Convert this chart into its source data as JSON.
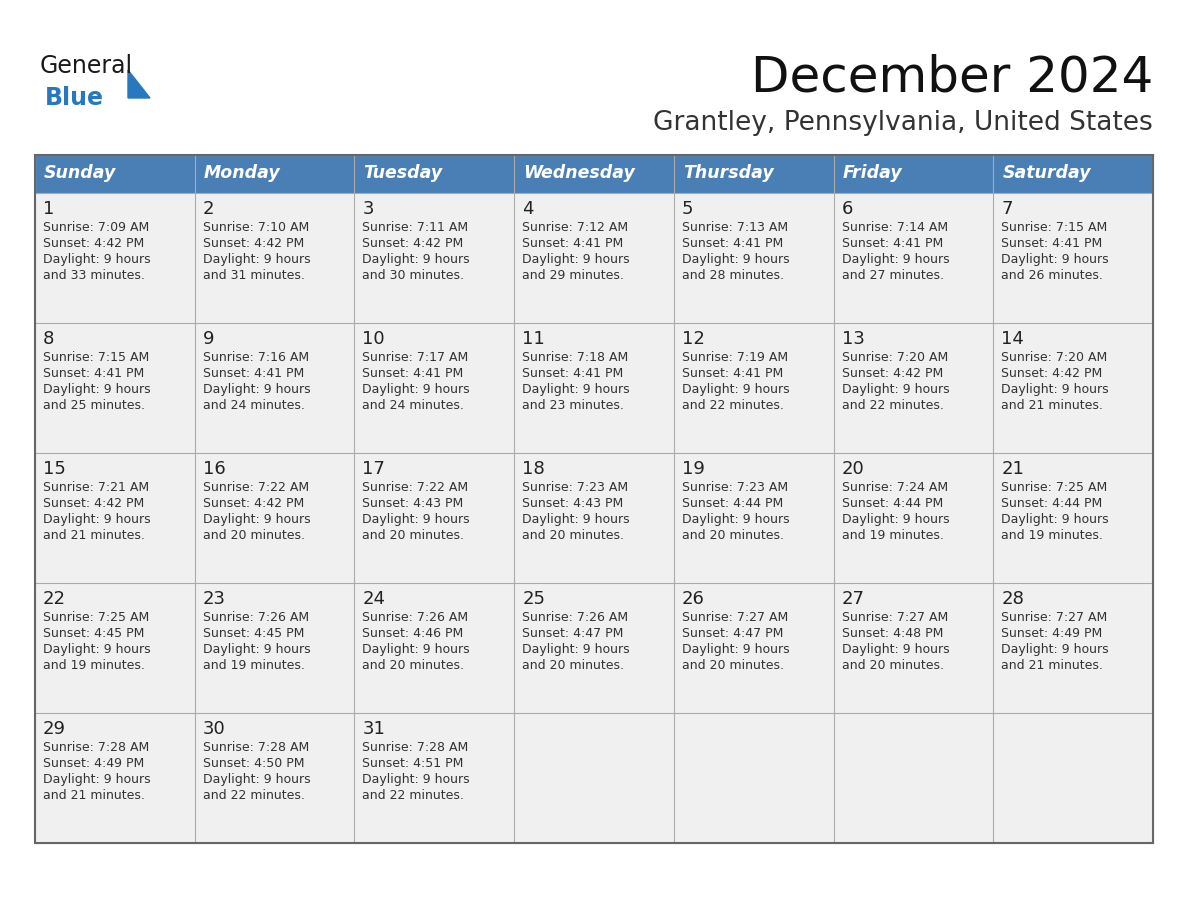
{
  "title": "December 2024",
  "subtitle": "Grantley, Pennsylvania, United States",
  "header_bg": "#4A7FB5",
  "header_text": "#FFFFFF",
  "day_headers": [
    "Sunday",
    "Monday",
    "Tuesday",
    "Wednesday",
    "Thursday",
    "Friday",
    "Saturday"
  ],
  "cell_bg_light": "#F0F0F0",
  "grid_color": "#AAAAAA",
  "days": [
    {
      "day": 1,
      "col": 0,
      "row": 0,
      "sunrise": "7:09 AM",
      "sunset": "4:42 PM",
      "daylight": "9 hours and 33 minutes."
    },
    {
      "day": 2,
      "col": 1,
      "row": 0,
      "sunrise": "7:10 AM",
      "sunset": "4:42 PM",
      "daylight": "9 hours and 31 minutes."
    },
    {
      "day": 3,
      "col": 2,
      "row": 0,
      "sunrise": "7:11 AM",
      "sunset": "4:42 PM",
      "daylight": "9 hours and 30 minutes."
    },
    {
      "day": 4,
      "col": 3,
      "row": 0,
      "sunrise": "7:12 AM",
      "sunset": "4:41 PM",
      "daylight": "9 hours and 29 minutes."
    },
    {
      "day": 5,
      "col": 4,
      "row": 0,
      "sunrise": "7:13 AM",
      "sunset": "4:41 PM",
      "daylight": "9 hours and 28 minutes."
    },
    {
      "day": 6,
      "col": 5,
      "row": 0,
      "sunrise": "7:14 AM",
      "sunset": "4:41 PM",
      "daylight": "9 hours and 27 minutes."
    },
    {
      "day": 7,
      "col": 6,
      "row": 0,
      "sunrise": "7:15 AM",
      "sunset": "4:41 PM",
      "daylight": "9 hours and 26 minutes."
    },
    {
      "day": 8,
      "col": 0,
      "row": 1,
      "sunrise": "7:15 AM",
      "sunset": "4:41 PM",
      "daylight": "9 hours and 25 minutes."
    },
    {
      "day": 9,
      "col": 1,
      "row": 1,
      "sunrise": "7:16 AM",
      "sunset": "4:41 PM",
      "daylight": "9 hours and 24 minutes."
    },
    {
      "day": 10,
      "col": 2,
      "row": 1,
      "sunrise": "7:17 AM",
      "sunset": "4:41 PM",
      "daylight": "9 hours and 24 minutes."
    },
    {
      "day": 11,
      "col": 3,
      "row": 1,
      "sunrise": "7:18 AM",
      "sunset": "4:41 PM",
      "daylight": "9 hours and 23 minutes."
    },
    {
      "day": 12,
      "col": 4,
      "row": 1,
      "sunrise": "7:19 AM",
      "sunset": "4:41 PM",
      "daylight": "9 hours and 22 minutes."
    },
    {
      "day": 13,
      "col": 5,
      "row": 1,
      "sunrise": "7:20 AM",
      "sunset": "4:42 PM",
      "daylight": "9 hours and 22 minutes."
    },
    {
      "day": 14,
      "col": 6,
      "row": 1,
      "sunrise": "7:20 AM",
      "sunset": "4:42 PM",
      "daylight": "9 hours and 21 minutes."
    },
    {
      "day": 15,
      "col": 0,
      "row": 2,
      "sunrise": "7:21 AM",
      "sunset": "4:42 PM",
      "daylight": "9 hours and 21 minutes."
    },
    {
      "day": 16,
      "col": 1,
      "row": 2,
      "sunrise": "7:22 AM",
      "sunset": "4:42 PM",
      "daylight": "9 hours and 20 minutes."
    },
    {
      "day": 17,
      "col": 2,
      "row": 2,
      "sunrise": "7:22 AM",
      "sunset": "4:43 PM",
      "daylight": "9 hours and 20 minutes."
    },
    {
      "day": 18,
      "col": 3,
      "row": 2,
      "sunrise": "7:23 AM",
      "sunset": "4:43 PM",
      "daylight": "9 hours and 20 minutes."
    },
    {
      "day": 19,
      "col": 4,
      "row": 2,
      "sunrise": "7:23 AM",
      "sunset": "4:44 PM",
      "daylight": "9 hours and 20 minutes."
    },
    {
      "day": 20,
      "col": 5,
      "row": 2,
      "sunrise": "7:24 AM",
      "sunset": "4:44 PM",
      "daylight": "9 hours and 19 minutes."
    },
    {
      "day": 21,
      "col": 6,
      "row": 2,
      "sunrise": "7:25 AM",
      "sunset": "4:44 PM",
      "daylight": "9 hours and 19 minutes."
    },
    {
      "day": 22,
      "col": 0,
      "row": 3,
      "sunrise": "7:25 AM",
      "sunset": "4:45 PM",
      "daylight": "9 hours and 19 minutes."
    },
    {
      "day": 23,
      "col": 1,
      "row": 3,
      "sunrise": "7:26 AM",
      "sunset": "4:45 PM",
      "daylight": "9 hours and 19 minutes."
    },
    {
      "day": 24,
      "col": 2,
      "row": 3,
      "sunrise": "7:26 AM",
      "sunset": "4:46 PM",
      "daylight": "9 hours and 20 minutes."
    },
    {
      "day": 25,
      "col": 3,
      "row": 3,
      "sunrise": "7:26 AM",
      "sunset": "4:47 PM",
      "daylight": "9 hours and 20 minutes."
    },
    {
      "day": 26,
      "col": 4,
      "row": 3,
      "sunrise": "7:27 AM",
      "sunset": "4:47 PM",
      "daylight": "9 hours and 20 minutes."
    },
    {
      "day": 27,
      "col": 5,
      "row": 3,
      "sunrise": "7:27 AM",
      "sunset": "4:48 PM",
      "daylight": "9 hours and 20 minutes."
    },
    {
      "day": 28,
      "col": 6,
      "row": 3,
      "sunrise": "7:27 AM",
      "sunset": "4:49 PM",
      "daylight": "9 hours and 21 minutes."
    },
    {
      "day": 29,
      "col": 0,
      "row": 4,
      "sunrise": "7:28 AM",
      "sunset": "4:49 PM",
      "daylight": "9 hours and 21 minutes."
    },
    {
      "day": 30,
      "col": 1,
      "row": 4,
      "sunrise": "7:28 AM",
      "sunset": "4:50 PM",
      "daylight": "9 hours and 22 minutes."
    },
    {
      "day": 31,
      "col": 2,
      "row": 4,
      "sunrise": "7:28 AM",
      "sunset": "4:51 PM",
      "daylight": "9 hours and 22 minutes."
    }
  ],
  "num_rows": 5,
  "logo_general_color": "#1a1a1a",
  "logo_blue_color": "#2878C0",
  "logo_triangle_color": "#2878C0"
}
